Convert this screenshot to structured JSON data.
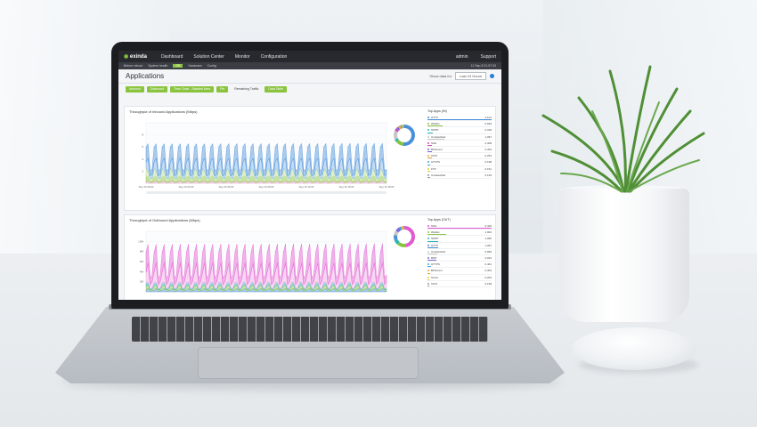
{
  "nav": {
    "logo": "exinda",
    "items": [
      "Dashboard",
      "Solution Center",
      "Monitor",
      "Configuration"
    ],
    "right": [
      "admin",
      "Support"
    ]
  },
  "status": {
    "left": [
      "Before reboot",
      "System health"
    ],
    "badge": "OK",
    "middle": [
      "Hardware",
      "Config"
    ],
    "right": "11 Sep 8 21:57:03"
  },
  "page": {
    "title": "Applications",
    "show_data_label": "Show data for",
    "range": "Last 24 Hours"
  },
  "toolbar": {
    "buttons": [
      "Inbound",
      "Outbound",
      "Time Chart - Stacked Area",
      "Pie",
      "Remaining Traffic",
      "Data Table"
    ]
  },
  "panels": [
    {
      "title": "Throughput of Inbound Applications (Mbps)",
      "legend_title": "Top Apps (IN)",
      "apps": [
        {
          "name": "HTTP",
          "value": "4,101",
          "color": "#4a90d9"
        },
        {
          "name": "WebEx",
          "value": "0,949",
          "color": "#8ac43f"
        },
        {
          "name": "SMTP",
          "value": "0,318",
          "color": "#2bb5b5"
        },
        {
          "name": "Unclassified",
          "value": "1,097",
          "color": "#c7c7c7"
        },
        {
          "name": "SSH",
          "value": "0,308",
          "color": "#d24ab5"
        },
        {
          "name": "BitTorrent",
          "value": "0,303",
          "color": "#7b6cd9"
        },
        {
          "name": "CIFS",
          "value": "0,293",
          "color": "#f0a23a"
        },
        {
          "name": "HTTPS",
          "value": "0,198",
          "color": "#3aa8e0"
        },
        {
          "name": "FTP",
          "value": "0,151",
          "color": "#e2c93a"
        },
        {
          "name": "Unclassified",
          "value": "0,149",
          "color": "#999999"
        }
      ]
    },
    {
      "title": "Throughput of Outbound Applications (Mbps)",
      "legend_title": "Top Apps (OUT)",
      "apps": [
        {
          "name": "SSH",
          "value": "6,449",
          "color": "#e25ad0"
        },
        {
          "name": "WebEx",
          "value": "1,904",
          "color": "#8ac43f"
        },
        {
          "name": "SMTP",
          "value": "1,060",
          "color": "#2bb5b5"
        },
        {
          "name": "HTTP",
          "value": "1,097",
          "color": "#4a90d9"
        },
        {
          "name": "Unclassified",
          "value": "0,999",
          "color": "#c7c7c7"
        },
        {
          "name": "RDP",
          "value": "0,933",
          "color": "#7b6cd9"
        },
        {
          "name": "HTTPS",
          "value": "0,401",
          "color": "#3aa8e0"
        },
        {
          "name": "BitTorrent",
          "value": "0,303",
          "color": "#f0a23a"
        },
        {
          "name": "Telnet",
          "value": "0,203",
          "color": "#e2c93a"
        },
        {
          "name": "CIFS",
          "value": "0,198",
          "color": "#999999"
        }
      ]
    }
  ],
  "inbound_ticks": [
    "Sep 16 00:00",
    "Sep 16 03:00",
    "Sep 16 06:00",
    "Sep 16 09:00",
    "Sep 16 12:00",
    "Sep 16 15:00",
    "Sep 16 18:00"
  ],
  "inbound_yticks": [
    "8",
    "6",
    "4",
    "2"
  ],
  "outbound_yticks": [
    "10M",
    "8M",
    "6M",
    "4M",
    "2M"
  ]
}
